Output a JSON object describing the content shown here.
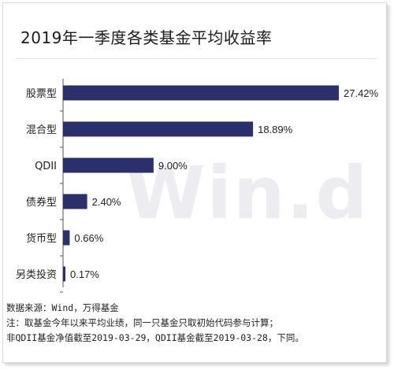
{
  "title": "2019年一季度各类基金平均收益率",
  "watermark": "Win.d",
  "colors": {
    "bar": "#2b2f6b",
    "axis": "#555555",
    "text": "#222222"
  },
  "chart_data": {
    "type": "bar",
    "orientation": "horizontal",
    "categories": [
      "股票型",
      "混合型",
      "QDII",
      "债券型",
      "货币型",
      "另类投资"
    ],
    "values": [
      27.42,
      18.89,
      9.0,
      2.4,
      0.66,
      0.17
    ],
    "data_labels": [
      "27.42%",
      "18.89%",
      "9.00%",
      "2.40%",
      "0.66%",
      "0.17%"
    ],
    "xlim": [
      0,
      28
    ],
    "grid": false,
    "legend": "none"
  },
  "footer": {
    "line1": "数据来源：Wind，万得基金",
    "line2": "注：取基金今年以来平均业绩，同一只基金只取初始代码参与计算；",
    "line3": "非QDII基金净值截至2019-03-29，QDII基金截至2019-03-28，下同。"
  }
}
